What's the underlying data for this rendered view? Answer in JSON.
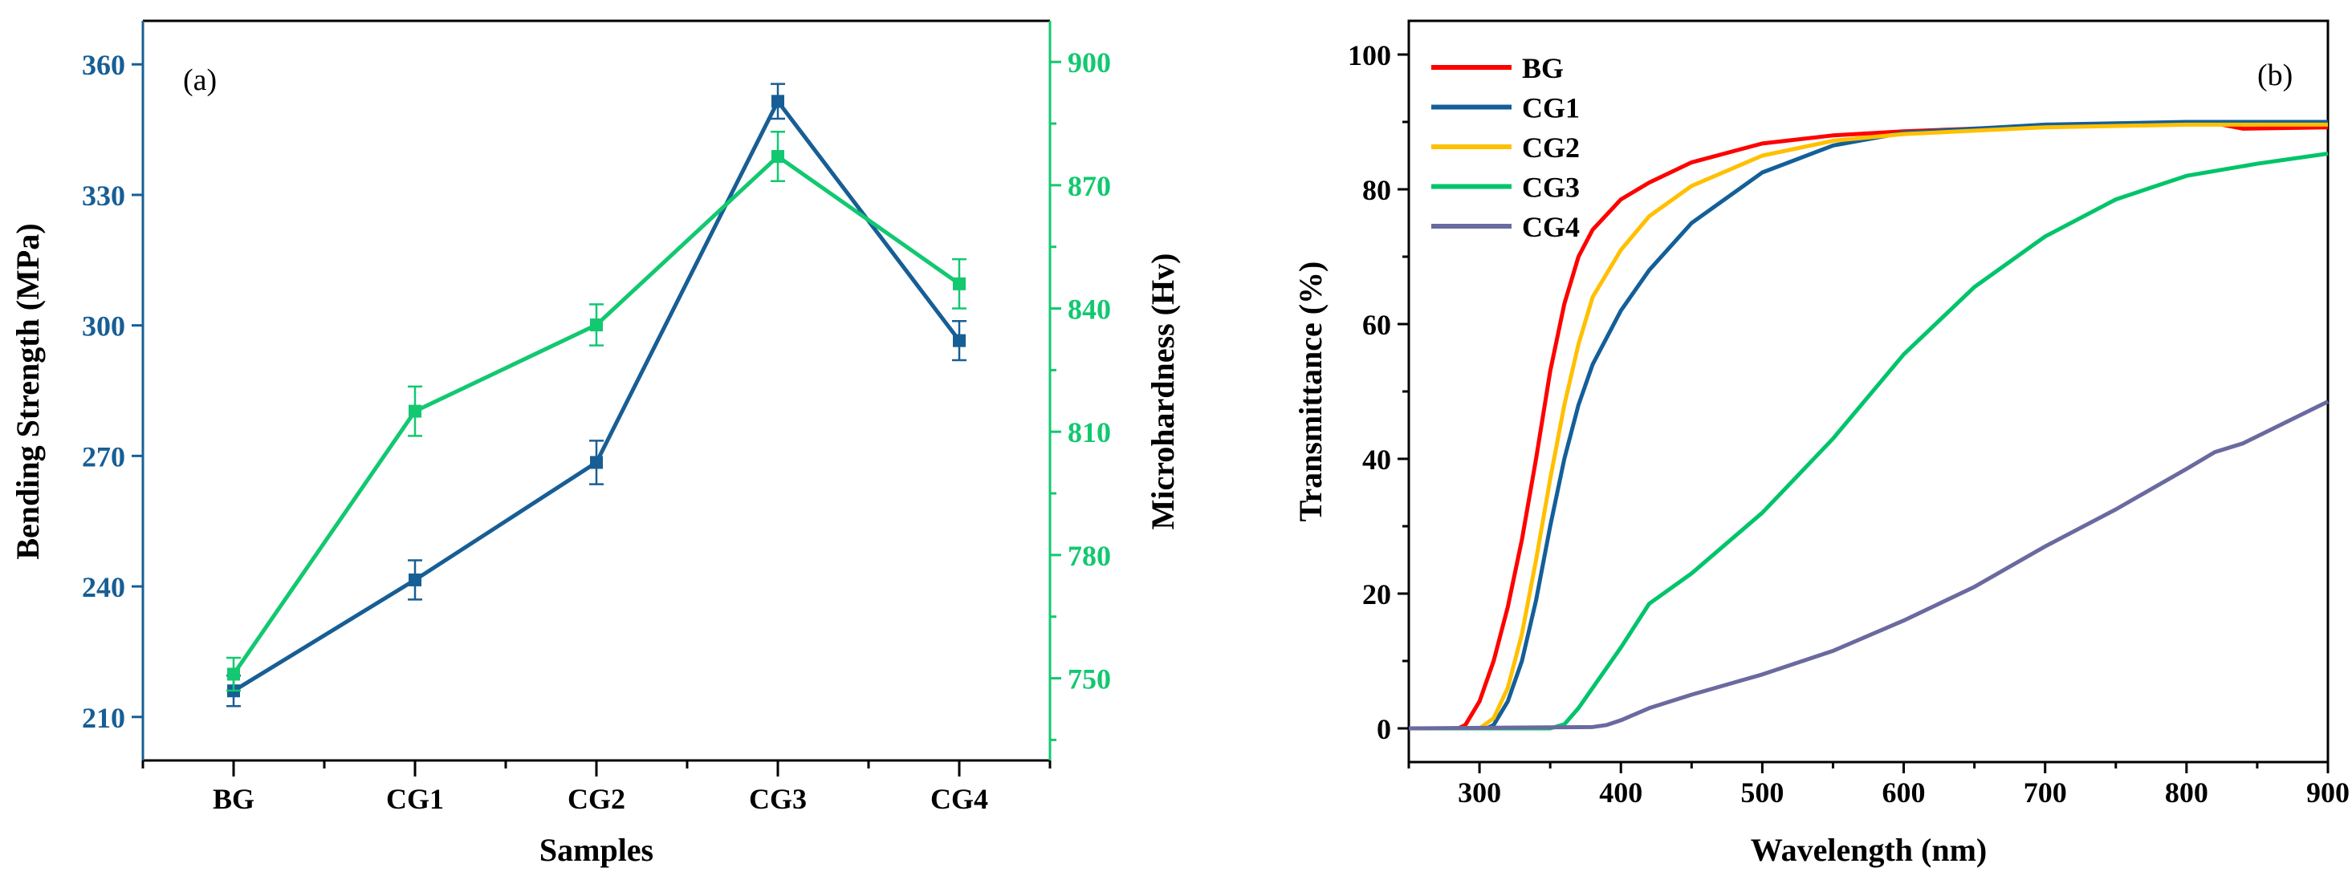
{
  "chart_data": [
    {
      "type": "line",
      "panel_label": "(a)",
      "xlabel": "Samples",
      "ylabel": "Bending Strength (MPa)",
      "y2label": "Microhardness (Hv)",
      "categories": [
        "BG",
        "CG1",
        "CG2",
        "CG3",
        "CG4"
      ],
      "ylim": [
        200,
        370
      ],
      "yticks": [
        210,
        240,
        270,
        300,
        330,
        360
      ],
      "y2lim": [
        730,
        910
      ],
      "y2ticks": [
        750,
        780,
        810,
        840,
        870,
        900
      ],
      "series": [
        {
          "name": "Bending Strength",
          "axis": "left",
          "color": "#175e95",
          "values": [
            216,
            241.5,
            268.5,
            351.5,
            296.5
          ],
          "errors": [
            3.5,
            4.5,
            5,
            4,
            4.5
          ]
        },
        {
          "name": "Microhardness",
          "axis": "right",
          "color": "#12c870",
          "values": [
            751,
            815,
            836,
            877,
            846
          ],
          "errors": [
            4,
            6,
            5,
            6,
            6
          ]
        }
      ],
      "left_axis_color": "#175e95",
      "right_axis_color": "#12c870"
    },
    {
      "type": "line",
      "panel_label": "(b)",
      "xlabel": "Wavelength (nm)",
      "ylabel": "Transmittance (%)",
      "xlim": [
        250,
        900
      ],
      "ylim": [
        -5,
        105
      ],
      "xticks": [
        300,
        400,
        500,
        600,
        700,
        800,
        900
      ],
      "yticks": [
        0,
        20,
        40,
        60,
        80,
        100
      ],
      "legend_position": "top-left",
      "series": [
        {
          "name": "BG",
          "color": "#ff0000",
          "x": [
            250,
            285,
            290,
            300,
            310,
            320,
            330,
            340,
            350,
            360,
            370,
            380,
            400,
            420,
            450,
            500,
            550,
            600,
            700,
            800,
            820,
            840,
            900
          ],
          "y": [
            0,
            0,
            0.5,
            4,
            10,
            18,
            28,
            40,
            53,
            63,
            70,
            74,
            78.5,
            81,
            84,
            86.8,
            88,
            88.6,
            89.4,
            89.8,
            89.8,
            89,
            89.2
          ]
        },
        {
          "name": "CG1",
          "color": "#135f99",
          "x": [
            250,
            305,
            310,
            320,
            330,
            340,
            350,
            360,
            370,
            380,
            400,
            420,
            450,
            500,
            550,
            600,
            700,
            800,
            900
          ],
          "y": [
            0,
            0,
            0.5,
            4,
            10,
            19,
            30,
            40,
            48,
            54,
            62,
            68,
            75,
            82.5,
            86.5,
            88.4,
            89.6,
            90,
            90
          ]
        },
        {
          "name": "CG2",
          "color": "#ffc000",
          "x": [
            250,
            300,
            310,
            320,
            330,
            340,
            350,
            360,
            370,
            380,
            400,
            420,
            450,
            500,
            550,
            600,
            700,
            800,
            900
          ],
          "y": [
            0,
            0,
            1.5,
            6,
            14,
            25,
            37,
            48,
            57,
            64,
            71,
            76,
            80.5,
            85,
            87.2,
            88.2,
            89.2,
            89.6,
            89.6
          ]
        },
        {
          "name": "CG3",
          "color": "#00c46a",
          "x": [
            250,
            350,
            360,
            370,
            380,
            400,
            420,
            450,
            500,
            550,
            600,
            650,
            700,
            750,
            800,
            850,
            900
          ],
          "y": [
            0,
            0,
            0.6,
            3,
            6,
            12,
            18.5,
            23,
            32,
            43,
            55.5,
            65.5,
            73,
            78.5,
            82,
            83.8,
            85.3
          ]
        },
        {
          "name": "CG4",
          "color": "#6a6aa0",
          "x": [
            250,
            380,
            390,
            400,
            420,
            450,
            500,
            550,
            600,
            650,
            700,
            750,
            800,
            820,
            840,
            900
          ],
          "y": [
            0,
            0.2,
            0.5,
            1.2,
            3,
            5,
            8,
            11.5,
            16,
            21,
            27,
            32.5,
            38.5,
            41,
            42.3,
            48.5
          ]
        }
      ]
    }
  ]
}
